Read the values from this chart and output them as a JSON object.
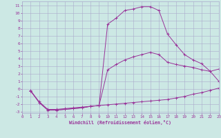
{
  "xlabel": "Windchill (Refroidissement éolien,°C)",
  "background_color": "#cce8e4",
  "grid_color": "#aaaacc",
  "line_color": "#993399",
  "xlim": [
    0,
    23
  ],
  "ylim": [
    -3.2,
    11.5
  ],
  "xticks": [
    0,
    1,
    2,
    3,
    4,
    5,
    6,
    7,
    8,
    9,
    10,
    11,
    12,
    13,
    14,
    15,
    16,
    17,
    18,
    19,
    20,
    21,
    22,
    23
  ],
  "yticks": [
    -3,
    -2,
    -1,
    0,
    1,
    2,
    3,
    4,
    5,
    6,
    7,
    8,
    9,
    10,
    11
  ],
  "line1_x": [
    1,
    2,
    3,
    4,
    5,
    6,
    7,
    8,
    9,
    10,
    11,
    12,
    13,
    14,
    15,
    16,
    17,
    18,
    19,
    20,
    21,
    22,
    23
  ],
  "line1_y": [
    -0.3,
    -1.7,
    -2.7,
    -2.7,
    -2.6,
    -2.5,
    -2.4,
    -2.3,
    -2.2,
    -2.1,
    -2.0,
    -1.9,
    -1.8,
    -1.7,
    -1.6,
    -1.5,
    -1.4,
    -1.2,
    -1.0,
    -0.7,
    -0.5,
    -0.2,
    0.1
  ],
  "line2_x": [
    1,
    2,
    3,
    4,
    5,
    6,
    7,
    8,
    9,
    10,
    11,
    12,
    13,
    14,
    15,
    16,
    17,
    18,
    19,
    20,
    21,
    22,
    23
  ],
  "line2_y": [
    -0.2,
    -1.8,
    -2.8,
    -2.8,
    -2.7,
    -2.6,
    -2.5,
    -2.3,
    -2.2,
    8.5,
    9.3,
    10.3,
    10.5,
    10.8,
    10.8,
    10.3,
    7.2,
    5.8,
    4.5,
    3.8,
    3.3,
    2.3,
    2.6
  ],
  "line3_x": [
    1,
    2,
    3,
    4,
    5,
    6,
    7,
    8,
    9,
    10,
    11,
    12,
    13,
    14,
    15,
    16,
    17,
    18,
    19,
    20,
    21,
    22,
    23
  ],
  "line3_y": [
    -0.3,
    -1.8,
    -2.8,
    -2.8,
    -2.7,
    -2.6,
    -2.5,
    -2.3,
    -2.2,
    2.5,
    3.2,
    3.8,
    4.2,
    4.5,
    4.8,
    4.5,
    3.5,
    3.2,
    3.0,
    2.8,
    2.5,
    2.3,
    1.0
  ]
}
